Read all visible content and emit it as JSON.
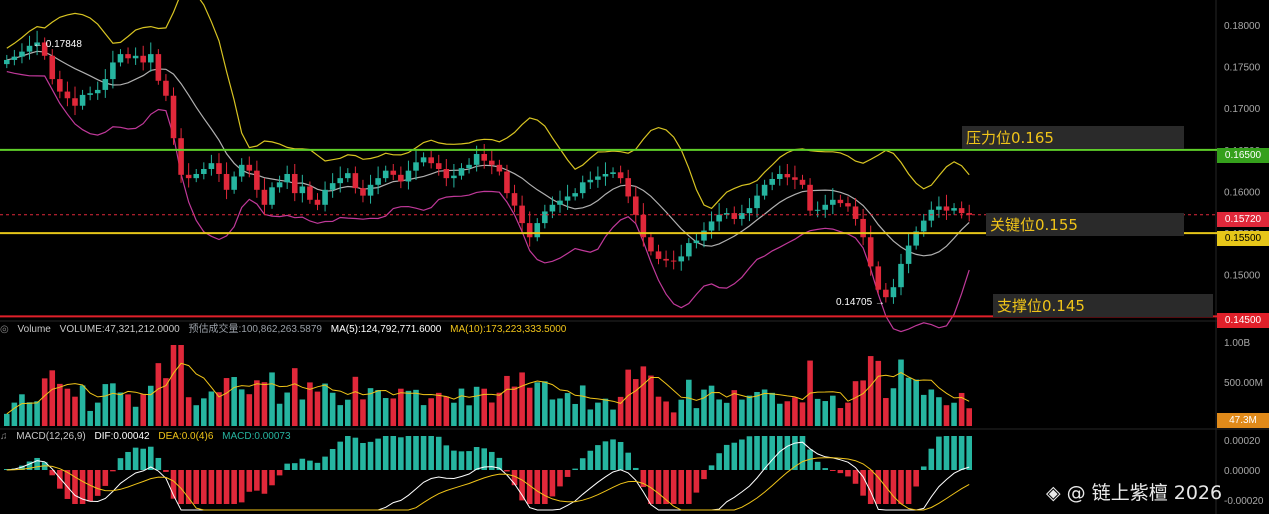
{
  "chart_data": {
    "type": "candlestick",
    "price_axis": {
      "ticks": [
        "0.18000",
        "0.17500",
        "0.17000",
        "0.16500",
        "0.16000",
        "0.15500",
        "0.15000"
      ],
      "min": 0.1448,
      "max": 0.1818
    },
    "levels": [
      {
        "id": "resistance",
        "price": 0.165,
        "tag": "0.16500",
        "color": "#5fcf2a",
        "label": "压力位0.165"
      },
      {
        "id": "key",
        "price": 0.155,
        "tag": "0.15500",
        "color": "#e6c619",
        "label": "关键位0.155"
      },
      {
        "id": "support",
        "price": 0.145,
        "tag": "0.14500",
        "color": "#e0202a",
        "label": "支撑位0.145"
      }
    ],
    "last_price": {
      "price": 0.1572,
      "tag": "0.15720",
      "color": "#e0283a"
    },
    "high_mark": "← 0.17848",
    "low_mark": "0.14705 →",
    "candles_close": [
      0.1758,
      0.1762,
      0.1768,
      0.1775,
      0.1779,
      0.1763,
      0.1735,
      0.172,
      0.1712,
      0.1703,
      0.1716,
      0.1718,
      0.1722,
      0.1735,
      0.1755,
      0.1765,
      0.176,
      0.1763,
      0.1755,
      0.1765,
      0.1733,
      0.1715,
      0.1664,
      0.162,
      0.1616,
      0.1621,
      0.1627,
      0.1634,
      0.1621,
      0.1602,
      0.1618,
      0.1632,
      0.1625,
      0.1602,
      0.1584,
      0.1605,
      0.1611,
      0.1621,
      0.1598,
      0.1606,
      0.159,
      0.1584,
      0.1602,
      0.161,
      0.1616,
      0.1622,
      0.1604,
      0.1595,
      0.1608,
      0.1616,
      0.1625,
      0.162,
      0.1612,
      0.1625,
      0.1635,
      0.1641,
      0.1634,
      0.1627,
      0.1616,
      0.1619,
      0.1628,
      0.1632,
      0.1645,
      0.1637,
      0.1632,
      0.1624,
      0.1598,
      0.1583,
      0.1562,
      0.1545,
      0.1562,
      0.1576,
      0.1584,
      0.1589,
      0.1594,
      0.1598,
      0.1611,
      0.1614,
      0.1618,
      0.1621,
      0.1623,
      0.1616,
      0.1594,
      0.1572,
      0.1545,
      0.1528,
      0.1519,
      0.1517,
      0.1516,
      0.1522,
      0.1538,
      0.1541,
      0.1553,
      0.1564,
      0.1572,
      0.1574,
      0.1567,
      0.1574,
      0.158,
      0.1595,
      0.1608,
      0.1615,
      0.1621,
      0.1617,
      0.1614,
      0.1608,
      0.1577,
      0.1578,
      0.1584,
      0.159,
      0.1586,
      0.1582,
      0.1567,
      0.1545,
      0.151,
      0.1482,
      0.1473,
      0.1485,
      0.1513,
      0.1535,
      0.1552,
      0.1565,
      0.1578,
      0.1582,
      0.1577,
      0.158,
      0.1574,
      0.1572
    ],
    "volume": {
      "legend": [
        {
          "text": "Volume",
          "color": "#c8c8c8"
        },
        {
          "text": "VOLUME:47,321,212.0000",
          "color": "#c8c8c8"
        },
        {
          "text": "预估成交量:100,862,263.5879",
          "color": "#9aa0a8"
        },
        {
          "text": "MA(5):124,792,771.6000",
          "color": "#ffffff"
        },
        {
          "text": "MA(10):173,223,333.5000",
          "color": "#f0c419"
        }
      ],
      "ticks": [
        "1.00B",
        "500.00M"
      ],
      "tag": "47.3M"
    },
    "macd": {
      "legend": [
        {
          "text": "MACD(12,26,9)",
          "color": "#c8c8c8"
        },
        {
          "text": "DIF:0.00042",
          "color": "#ffffff"
        },
        {
          "text": "DEA:0.0(4)6",
          "color": "#f0c419"
        },
        {
          "text": "MACD:0.00073",
          "color": "#26b5a0"
        }
      ],
      "ticks": [
        "0.00020",
        "0.00000",
        "-0.00020"
      ]
    }
  },
  "watermark": "@ 链上紫檀 2026"
}
